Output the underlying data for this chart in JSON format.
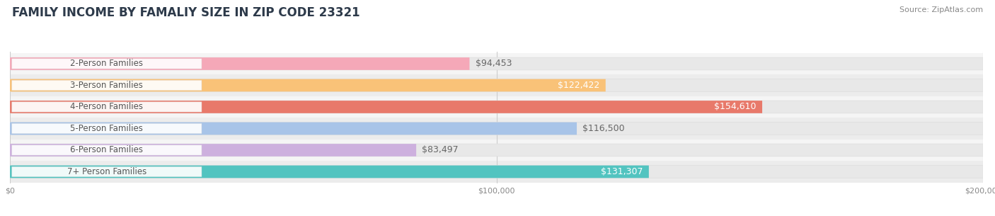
{
  "title": "FAMILY INCOME BY FAMALIY SIZE IN ZIP CODE 23321",
  "source": "Source: ZipAtlas.com",
  "categories": [
    "2-Person Families",
    "3-Person Families",
    "4-Person Families",
    "5-Person Families",
    "6-Person Families",
    "7+ Person Families"
  ],
  "values": [
    94453,
    122422,
    154610,
    116500,
    83497,
    131307
  ],
  "labels": [
    "$94,453",
    "$122,422",
    "$154,610",
    "$116,500",
    "$83,497",
    "$131,307"
  ],
  "bar_colors": [
    "#F5A8B8",
    "#F9C278",
    "#E8796A",
    "#A8C4E8",
    "#CDB0DE",
    "#52C4C0"
  ],
  "label_colors": [
    "#666666",
    "#ffffff",
    "#ffffff",
    "#666666",
    "#666666",
    "#ffffff"
  ],
  "bg_stripe_colors": [
    "#f5f5f5",
    "#ececec"
  ],
  "background_color": "#ffffff",
  "xlim": [
    0,
    200000
  ],
  "xticks": [
    0,
    100000,
    200000
  ],
  "xtick_labels": [
    "$0",
    "$100,000",
    "$200,000"
  ],
  "title_fontsize": 12,
  "source_fontsize": 8,
  "label_fontsize": 9,
  "category_fontsize": 8.5
}
